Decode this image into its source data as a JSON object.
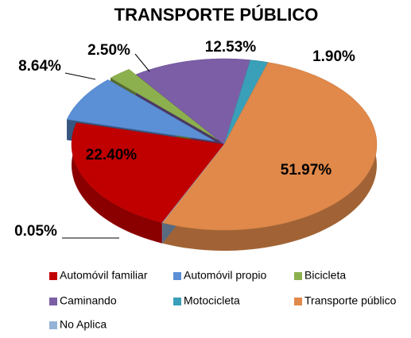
{
  "chart_data": {
    "type": "pie",
    "title": "TRANSPORTE PÚBLICO",
    "categories": [
      "Automóvil familiar",
      "Automóvil propio",
      "Bicicleta",
      "Caminando",
      "Motocicleta",
      "Transporte público",
      "No Aplica"
    ],
    "values": [
      22.4,
      8.64,
      2.5,
      12.53,
      1.9,
      51.97,
      0.05
    ],
    "value_labels": [
      "22.40%",
      "8.64%",
      "2.50%",
      "12.53%",
      "1.90%",
      "51.97%",
      "0.05%"
    ],
    "colors": [
      "#c00000",
      "#5b8fd6",
      "#8db04f",
      "#7b5ea6",
      "#3a9fb8",
      "#e0894a",
      "#95b3d7"
    ],
    "legend": "bottom"
  }
}
